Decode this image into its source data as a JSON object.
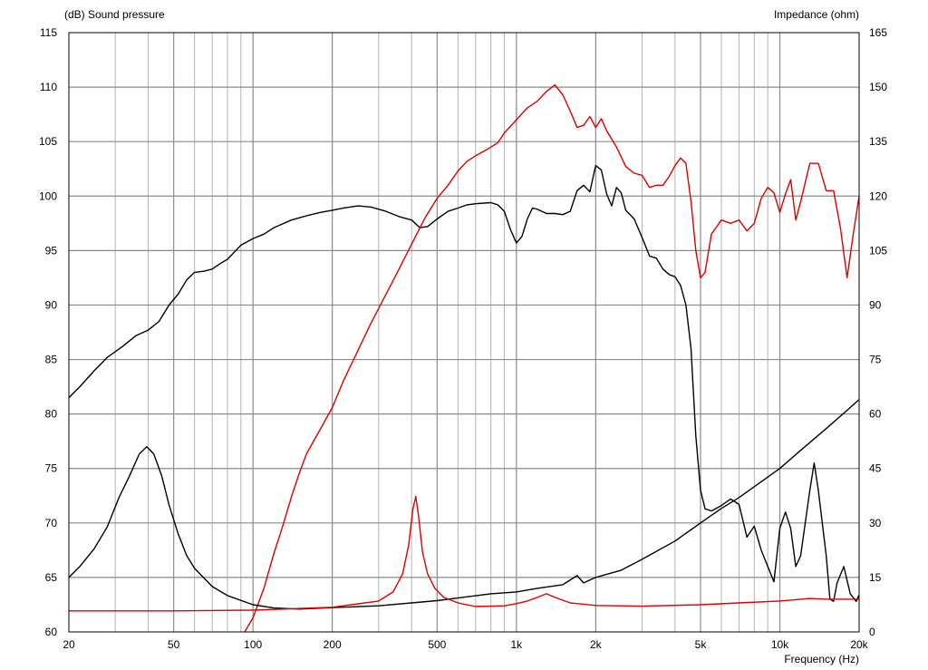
{
  "chart_data": {
    "type": "line",
    "x_scale": "log",
    "xlim": [
      20,
      20000
    ],
    "xlabel": "Frequency  (Hz)",
    "x_ticks": [
      {
        "v": 20,
        "label": "20"
      },
      {
        "v": 50,
        "label": "50"
      },
      {
        "v": 100,
        "label": "100"
      },
      {
        "v": 200,
        "label": "200"
      },
      {
        "v": 500,
        "label": "500"
      },
      {
        "v": 1000,
        "label": "1k"
      },
      {
        "v": 2000,
        "label": "2k"
      },
      {
        "v": 5000,
        "label": "5k"
      },
      {
        "v": 10000,
        "label": "10k"
      },
      {
        "v": 20000,
        "label": "20k"
      }
    ],
    "y_left": {
      "label": "(dB)  Sound pressure",
      "ylim": [
        60,
        115
      ],
      "ticks": [
        "60",
        "65",
        "70",
        "75",
        "80",
        "85",
        "90",
        "95",
        "100",
        "105",
        "110",
        "115"
      ]
    },
    "y_right": {
      "label": "Impedance  (ohm)",
      "ylim": [
        0,
        165
      ],
      "ticks": [
        "0",
        "15",
        "30",
        "45",
        "60",
        "75",
        "90",
        "105",
        "120",
        "135",
        "150",
        "165"
      ]
    },
    "grid": true,
    "series": [
      {
        "color": "#000000",
        "axis": "left",
        "points": [
          [
            20,
            81.5
          ],
          [
            22,
            82.5
          ],
          [
            25,
            84
          ],
          [
            28,
            85.2
          ],
          [
            32,
            86.2
          ],
          [
            36,
            87.2
          ],
          [
            40,
            87.7
          ],
          [
            44,
            88.5
          ],
          [
            48,
            90
          ],
          [
            52,
            91
          ],
          [
            56,
            92.3
          ],
          [
            60,
            93
          ],
          [
            65,
            93.1
          ],
          [
            70,
            93.3
          ],
          [
            75,
            93.8
          ],
          [
            80,
            94.2
          ],
          [
            90,
            95.5
          ],
          [
            100,
            96.1
          ],
          [
            110,
            96.5
          ],
          [
            120,
            97.1
          ],
          [
            140,
            97.8
          ],
          [
            160,
            98.2
          ],
          [
            180,
            98.5
          ],
          [
            200,
            98.7
          ],
          [
            220,
            98.9
          ],
          [
            250,
            99.1
          ],
          [
            280,
            99.0
          ],
          [
            320,
            98.6
          ],
          [
            360,
            98.1
          ],
          [
            400,
            97.8
          ],
          [
            430,
            97.1
          ],
          [
            460,
            97.2
          ],
          [
            500,
            97.9
          ],
          [
            550,
            98.6
          ],
          [
            600,
            98.9
          ],
          [
            650,
            99.2
          ],
          [
            700,
            99.3
          ],
          [
            800,
            99.4
          ],
          [
            850,
            99.2
          ],
          [
            900,
            98.6
          ],
          [
            950,
            96.9
          ],
          [
            1000,
            95.7
          ],
          [
            1050,
            96.3
          ],
          [
            1100,
            97.9
          ],
          [
            1150,
            98.9
          ],
          [
            1200,
            98.8
          ],
          [
            1300,
            98.4
          ],
          [
            1400,
            98.4
          ],
          [
            1500,
            98.3
          ],
          [
            1600,
            98.6
          ],
          [
            1700,
            100.5
          ],
          [
            1800,
            101.0
          ],
          [
            1900,
            100.4
          ],
          [
            2000,
            102.8
          ],
          [
            2100,
            102.4
          ],
          [
            2200,
            100.2
          ],
          [
            2300,
            99.1
          ],
          [
            2400,
            100.8
          ],
          [
            2500,
            100.3
          ],
          [
            2600,
            98.7
          ],
          [
            2800,
            97.9
          ],
          [
            3000,
            96.2
          ],
          [
            3200,
            94.5
          ],
          [
            3400,
            94.3
          ],
          [
            3600,
            93.3
          ],
          [
            3800,
            92.8
          ],
          [
            4000,
            92.6
          ],
          [
            4200,
            91.8
          ],
          [
            4400,
            90
          ],
          [
            4600,
            86
          ],
          [
            4800,
            78
          ],
          [
            5000,
            73
          ],
          [
            5200,
            71.3
          ],
          [
            5500,
            71.1
          ],
          [
            6000,
            71.6
          ],
          [
            6500,
            72.2
          ],
          [
            7000,
            71.7
          ],
          [
            7500,
            68.7
          ],
          [
            8000,
            69.7
          ],
          [
            8500,
            67.5
          ],
          [
            9000,
            66
          ],
          [
            9500,
            64.6
          ],
          [
            10000,
            69.5
          ],
          [
            10500,
            71
          ],
          [
            11000,
            69.5
          ],
          [
            11500,
            66
          ],
          [
            12000,
            67
          ],
          [
            13000,
            73
          ],
          [
            13500,
            75.5
          ],
          [
            14000,
            73
          ],
          [
            15000,
            67
          ],
          [
            15500,
            63
          ],
          [
            16000,
            62.8
          ],
          [
            16500,
            64.5
          ],
          [
            17500,
            66
          ],
          [
            18500,
            63.5
          ],
          [
            19500,
            62.8
          ],
          [
            20000,
            63.4
          ]
        ]
      },
      {
        "color": "#dd0000",
        "axis": "left",
        "points": [
          [
            93,
            60
          ],
          [
            100,
            61.3
          ],
          [
            110,
            64
          ],
          [
            120,
            67.2
          ],
          [
            130,
            69.8
          ],
          [
            140,
            72.4
          ],
          [
            150,
            74.6
          ],
          [
            160,
            76.4
          ],
          [
            180,
            78.6
          ],
          [
            200,
            80.6
          ],
          [
            220,
            83
          ],
          [
            250,
            85.8
          ],
          [
            280,
            88.3
          ],
          [
            320,
            91
          ],
          [
            360,
            93.4
          ],
          [
            400,
            95.6
          ],
          [
            450,
            98
          ],
          [
            500,
            99.8
          ],
          [
            550,
            101
          ],
          [
            600,
            102.3
          ],
          [
            650,
            103.2
          ],
          [
            700,
            103.7
          ],
          [
            750,
            104.1
          ],
          [
            800,
            104.5
          ],
          [
            850,
            104.9
          ],
          [
            900,
            105.8
          ],
          [
            1000,
            107
          ],
          [
            1100,
            108.1
          ],
          [
            1200,
            108.7
          ],
          [
            1300,
            109.6
          ],
          [
            1400,
            110.2
          ],
          [
            1500,
            109.3
          ],
          [
            1600,
            107.8
          ],
          [
            1700,
            106.3
          ],
          [
            1800,
            106.5
          ],
          [
            1900,
            107.3
          ],
          [
            2000,
            106.3
          ],
          [
            2100,
            107.1
          ],
          [
            2200,
            106
          ],
          [
            2400,
            104.5
          ],
          [
            2600,
            102.7
          ],
          [
            2800,
            102.1
          ],
          [
            3000,
            101.9
          ],
          [
            3200,
            100.8
          ],
          [
            3400,
            101
          ],
          [
            3600,
            101
          ],
          [
            3800,
            101.8
          ],
          [
            4000,
            102.8
          ],
          [
            4200,
            103.5
          ],
          [
            4400,
            103
          ],
          [
            4600,
            99.5
          ],
          [
            4800,
            95
          ],
          [
            5000,
            92.5
          ],
          [
            5200,
            93
          ],
          [
            5500,
            96.5
          ],
          [
            6000,
            97.8
          ],
          [
            6500,
            97.5
          ],
          [
            7000,
            97.8
          ],
          [
            7500,
            96.8
          ],
          [
            8000,
            97.5
          ],
          [
            8500,
            99.8
          ],
          [
            9000,
            100.8
          ],
          [
            9500,
            100.3
          ],
          [
            10000,
            98.5
          ],
          [
            10500,
            100.2
          ],
          [
            11000,
            101.5
          ],
          [
            11500,
            97.8
          ],
          [
            12000,
            99.5
          ],
          [
            13000,
            103
          ],
          [
            14000,
            103
          ],
          [
            15000,
            100.5
          ],
          [
            16000,
            100.5
          ],
          [
            17000,
            97
          ],
          [
            18000,
            92.5
          ],
          [
            19000,
            96.5
          ],
          [
            20000,
            100
          ]
        ]
      },
      {
        "color": "#000000",
        "axis": "right",
        "points": [
          [
            20,
            15
          ],
          [
            22,
            18
          ],
          [
            25,
            23
          ],
          [
            28,
            29
          ],
          [
            31,
            37
          ],
          [
            34,
            43
          ],
          [
            37,
            49
          ],
          [
            39.5,
            51
          ],
          [
            42,
            49
          ],
          [
            45,
            43
          ],
          [
            48,
            35
          ],
          [
            52,
            27
          ],
          [
            56,
            21
          ],
          [
            60,
            17.5
          ],
          [
            70,
            12.5
          ],
          [
            80,
            10
          ],
          [
            100,
            7.5
          ],
          [
            120,
            6.6
          ],
          [
            150,
            6.3
          ],
          [
            200,
            6.7
          ],
          [
            300,
            7.2
          ],
          [
            500,
            8.6
          ],
          [
            800,
            10.5
          ],
          [
            1000,
            11
          ],
          [
            1200,
            12
          ],
          [
            1500,
            13
          ],
          [
            1700,
            15.5
          ],
          [
            1800,
            13.5
          ],
          [
            2000,
            15
          ],
          [
            2500,
            17
          ],
          [
            3000,
            20
          ],
          [
            4000,
            25
          ],
          [
            5000,
            30
          ],
          [
            6000,
            34
          ],
          [
            7000,
            37
          ],
          [
            8000,
            40
          ],
          [
            10000,
            45
          ],
          [
            12000,
            50
          ],
          [
            15000,
            56
          ],
          [
            18000,
            61
          ],
          [
            20000,
            64
          ]
        ]
      },
      {
        "color": "#dd0000",
        "axis": "right",
        "points": [
          [
            20,
            5.8
          ],
          [
            50,
            5.8
          ],
          [
            100,
            6
          ],
          [
            200,
            6.8
          ],
          [
            300,
            8.5
          ],
          [
            340,
            11
          ],
          [
            370,
            16
          ],
          [
            390,
            24
          ],
          [
            405,
            34
          ],
          [
            415,
            37.3
          ],
          [
            425,
            32
          ],
          [
            440,
            22
          ],
          [
            460,
            16
          ],
          [
            490,
            12
          ],
          [
            530,
            9.5
          ],
          [
            600,
            8
          ],
          [
            700,
            7
          ],
          [
            900,
            7.2
          ],
          [
            1000,
            7.8
          ],
          [
            1100,
            8.5
          ],
          [
            1200,
            9.5
          ],
          [
            1300,
            10.5
          ],
          [
            1400,
            9.5
          ],
          [
            1600,
            8
          ],
          [
            2000,
            7.3
          ],
          [
            3000,
            7.1
          ],
          [
            5000,
            7.5
          ],
          [
            7000,
            8
          ],
          [
            10000,
            8.5
          ],
          [
            13000,
            9.2
          ],
          [
            15000,
            9
          ],
          [
            20000,
            9
          ]
        ]
      }
    ]
  }
}
